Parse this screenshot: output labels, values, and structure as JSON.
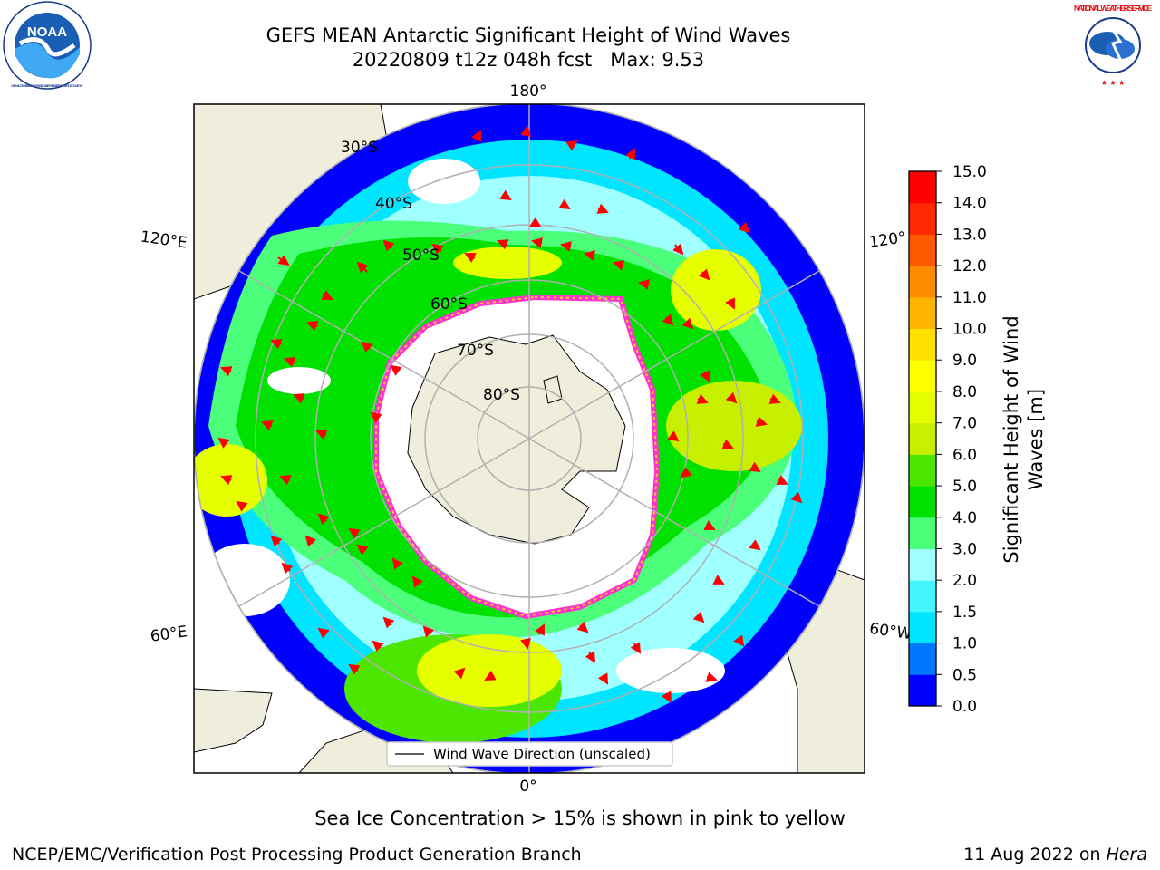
{
  "title": {
    "line1": "GEFS MEAN Antarctic Significant Height of Wind Waves",
    "line2": "20220809 t12z 048h fcst   Max: 9.53"
  },
  "logos": {
    "left": {
      "icon": "noaa-logo-icon",
      "text": "NOAA",
      "ring_text": "NATIONAL OCEANIC AND ATMOSPHERIC ADMINISTRATION · U.S. DEPARTMENT OF COMMERCE"
    },
    "right": {
      "icon": "nws-logo-icon",
      "ring_text": "NATIONAL WEATHER SERVICE"
    }
  },
  "map": {
    "projection": "south-polar-stereographic",
    "meridian_labels": {
      "top": "180°",
      "bottom": "0°",
      "upper_left": "120°E",
      "lower_left": "60°E",
      "upper_right": "120°",
      "lower_right": "60°W"
    },
    "latitude_labels": [
      "30°S",
      "40°S",
      "50°S",
      "60°S",
      "70°S",
      "80°S"
    ],
    "legend_label": "Wind Wave Direction (unscaled)",
    "colors": {
      "land": "#efeddc",
      "ocean_no_data": "#ffffff",
      "ice_edge": "#ff33cc",
      "ice_fringe": "#ffcc33",
      "arrow": "#ff0000",
      "grid": "#b0b0b0"
    }
  },
  "colorbar": {
    "label_line1": "Significant Height of Wind",
    "label_line2": "Waves [m]",
    "ticks": [
      "0.0",
      "0.5",
      "1.0",
      "1.5",
      "2.0",
      "3.0",
      "4.0",
      "5.0",
      "6.0",
      "7.0",
      "8.0",
      "9.0",
      "10.0",
      "11.0",
      "12.0",
      "13.0",
      "14.0",
      "15.0"
    ],
    "colors": [
      "#0000ff",
      "#0077ff",
      "#00e5ff",
      "#44f4ff",
      "#a0ffff",
      "#4cff7a",
      "#00e100",
      "#4ce600",
      "#c7f000",
      "#e6ff00",
      "#ffff00",
      "#ffe100",
      "#ffb400",
      "#ff8c00",
      "#ff5a00",
      "#ff2800",
      "#ff0000"
    ]
  },
  "footer": {
    "ice_note": "Sea Ice Concentration > 15% is shown in pink to yellow",
    "branch": "NCEP/EMC/Verification Post Processing Product Generation Branch",
    "date": "11 Aug 2022 on ",
    "system": "Hera"
  }
}
